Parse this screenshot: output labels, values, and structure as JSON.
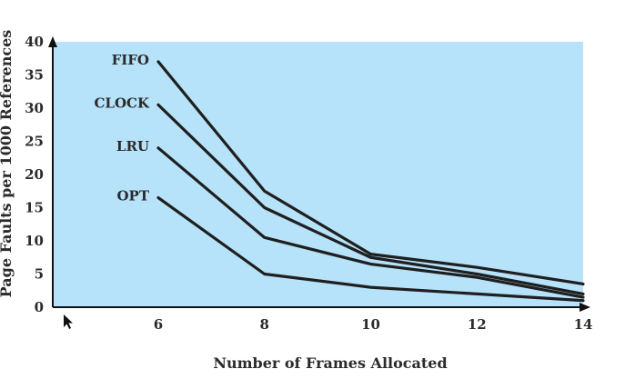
{
  "chart_data": {
    "type": "line",
    "xlabel": "Number of Frames Allocated",
    "ylabel": "Page Faults per 1000 References",
    "xlim": [
      6,
      14
    ],
    "ylim": [
      0,
      40
    ],
    "xticks": [
      6,
      8,
      10,
      12,
      14
    ],
    "yticks": [
      0,
      5,
      10,
      15,
      20,
      25,
      30,
      35,
      40
    ],
    "grid": false,
    "background_color": "#b6e2fa",
    "line_color": "#1f1f1f",
    "series": [
      {
        "name": "FIFO",
        "x": [
          6,
          8,
          10,
          12,
          14
        ],
        "y": [
          37,
          17.5,
          8,
          6,
          3.5
        ]
      },
      {
        "name": "CLOCK",
        "x": [
          6,
          8,
          10,
          12,
          14
        ],
        "y": [
          30.5,
          15,
          7.5,
          5,
          2
        ]
      },
      {
        "name": "LRU",
        "x": [
          6,
          8,
          10,
          12,
          14
        ],
        "y": [
          24,
          10.5,
          6.5,
          4.5,
          1.5
        ]
      },
      {
        "name": "OPT",
        "x": [
          6,
          8,
          10,
          12,
          14
        ],
        "y": [
          16.5,
          5,
          3,
          2,
          1
        ]
      }
    ]
  }
}
